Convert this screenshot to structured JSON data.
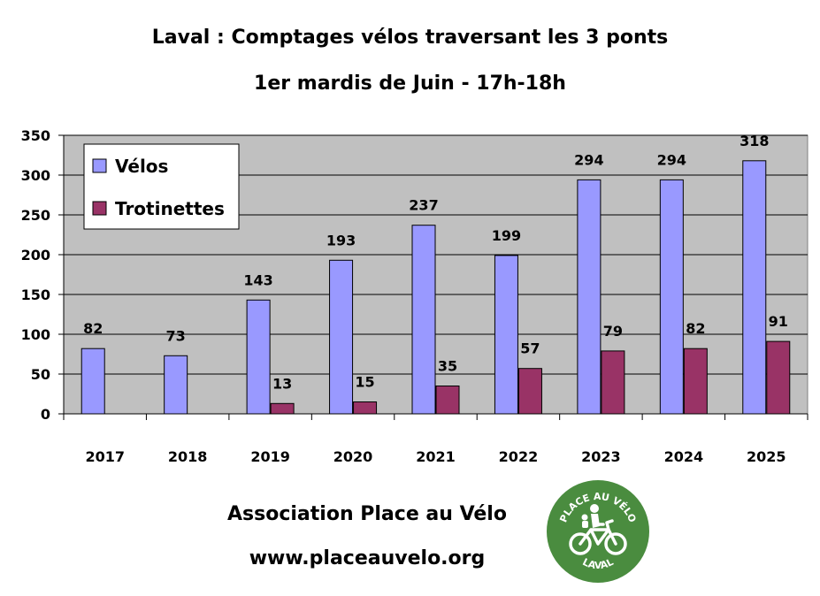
{
  "chart_data": {
    "type": "bar",
    "title": "Laval : Comptages vélos traversant les 3 ponts",
    "subtitle": "1er mardis de Juin - 17h-18h",
    "categories": [
      "2017",
      "2018",
      "2019",
      "2020",
      "2021",
      "2022",
      "2023",
      "2024",
      "2025"
    ],
    "series": [
      {
        "name": "Vélos",
        "values": [
          82,
          73,
          143,
          193,
          237,
          199,
          294,
          294,
          318
        ],
        "color": "#9999ff"
      },
      {
        "name": "Trotinettes",
        "values": [
          null,
          null,
          13,
          15,
          35,
          57,
          79,
          82,
          91
        ],
        "color": "#993366"
      }
    ],
    "ylim": [
      0,
      350
    ],
    "yticks": [
      0,
      50,
      100,
      150,
      200,
      250,
      300,
      350
    ],
    "xlabel": "",
    "ylabel": "",
    "grid": true,
    "legend": "top-left",
    "plot_background": "#c0c0c0"
  },
  "footer": {
    "association": "Association Place au Vélo",
    "website": "www.placeauvelo.org"
  },
  "logo": {
    "top_text": "PLACE AU VÉLO",
    "bottom_text": "LAVAL",
    "color": "#4a8c3f"
  }
}
